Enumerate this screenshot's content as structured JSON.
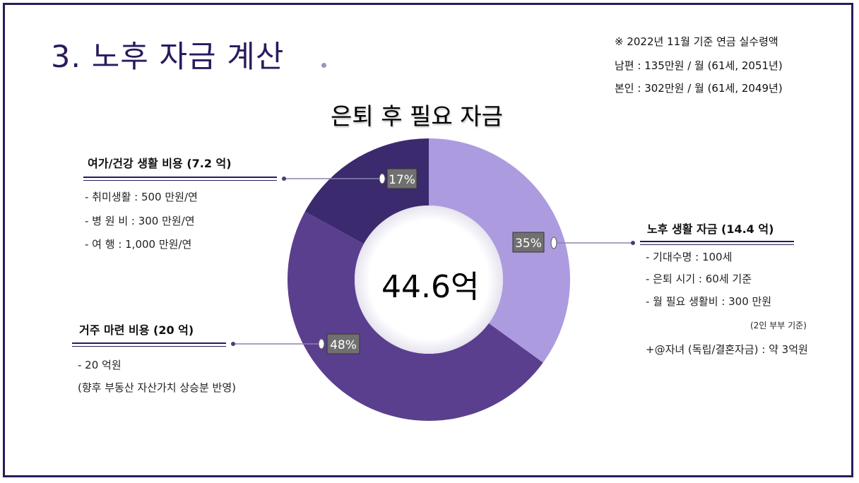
{
  "slide": {
    "title": "3. 노후 자금 계산",
    "notes": [
      "※ 2022년 11월 기준 연금 실수령액",
      "남편 : 135만원 / 월 (61세, 2051년)",
      "본인 : 302만원 / 월 (61세, 2049년)"
    ]
  },
  "chart_data": {
    "type": "pie",
    "title": "은퇴 후 필요 자금",
    "center_label": "44.6억",
    "slices": [
      {
        "name": "노후 생활 자금 (14.4 억)",
        "value": 35,
        "label": "35%",
        "color": "#ad9be0"
      },
      {
        "name": "거주 마련 비용 (20 억)",
        "value": 48,
        "label": "48%",
        "color": "#5b3f8f"
      },
      {
        "name": "여가/건강 생활 비용 (7.2 억)",
        "value": 17,
        "label": "17%",
        "color": "#3c2a6e"
      }
    ]
  },
  "groups": {
    "leisure": {
      "heading": "여가/건강 생활 비용 (7.2 억)",
      "items": [
        "- 취미생활 :  500 만원/연",
        "- 병 원 비 :   300 만원/연",
        "- 여      행 : 1,000 만원/연"
      ]
    },
    "living": {
      "heading": "노후 생활 자금 (14.4 억)",
      "items": [
        "- 기대수명 : 100세",
        "- 은퇴 시기 : 60세 기준",
        "- 월 필요 생활비 : 300 만원"
      ],
      "sub": "(2인 부부 기준)",
      "extra": "+@자녀 (독립/결혼자금) : 약 3억원"
    },
    "housing": {
      "heading": "거주 마련 비용 (20 억)",
      "items": [
        "- 20 억원",
        " (향후 부동산 자산가치 상승분 반영)"
      ]
    }
  }
}
